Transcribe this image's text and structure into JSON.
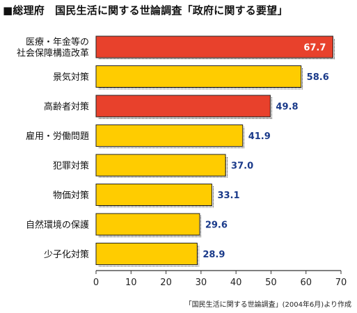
{
  "header": {
    "title": "■総理府　国民生活に関する世論調査「政府に関する要望」"
  },
  "footer": {
    "source_note": "「国民生活に関する世論調査」(2004年6月)より作成"
  },
  "colors": {
    "highlight_bar": "#e8412c",
    "normal_bar": "#ffcc00",
    "bar_outline": "#222222",
    "value_label": "#1a3a8a",
    "value_label_inside": "#ffffff",
    "axis": "#333333"
  },
  "chart_data": {
    "type": "bar",
    "orientation": "horizontal",
    "categories": [
      "医療・年金等の社会保障構造改革",
      "景気対策",
      "高齢者対策",
      "雇用・労働問題",
      "犯罪対策",
      "物価対策",
      "自然環境の保護",
      "少子化対策"
    ],
    "category_lines": [
      [
        "医療・年金等の",
        "社会保障構造改革"
      ],
      [
        "景気対策"
      ],
      [
        "高齢者対策"
      ],
      [
        "雇用・労働問題"
      ],
      [
        "犯罪対策"
      ],
      [
        "物価対策"
      ],
      [
        "自然環境の保護"
      ],
      [
        "少子化対策"
      ]
    ],
    "values": [
      67.7,
      58.6,
      49.8,
      41.9,
      37.0,
      33.1,
      29.6,
      28.9
    ],
    "value_labels": [
      "67.7",
      "58.6",
      "49.8",
      "41.9",
      "37.0",
      "33.1",
      "29.6",
      "28.9"
    ],
    "highlighted": [
      true,
      false,
      true,
      false,
      false,
      false,
      false,
      false
    ],
    "xlim": [
      0,
      70
    ],
    "xticks": [
      0,
      10,
      20,
      30,
      40,
      50,
      60,
      70
    ],
    "title": "",
    "xlabel": "",
    "ylabel": "",
    "grid": false
  }
}
